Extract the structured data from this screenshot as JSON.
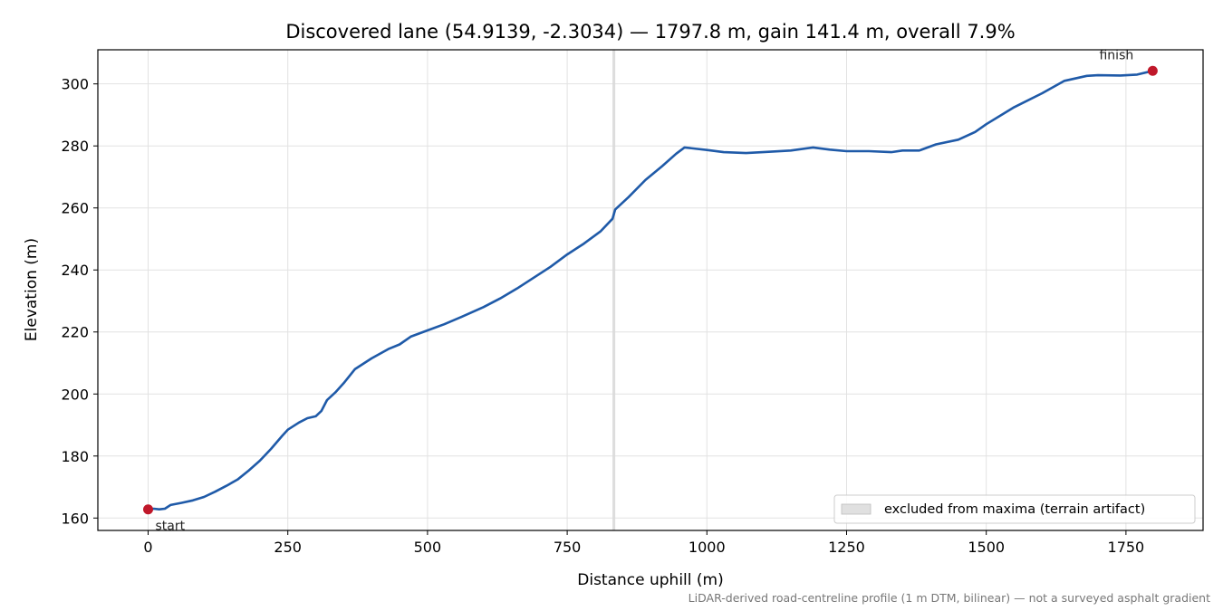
{
  "chart_data": {
    "type": "line",
    "title": "Discovered lane (54.9139, -2.3034) — 1797.8 m, gain 141.4 m, overall 7.9%",
    "xlabel": "Distance uphill (m)",
    "ylabel": "Elevation (m)",
    "xlim": [
      -90,
      1888
    ],
    "ylim": [
      156,
      311
    ],
    "xticks": [
      0,
      250,
      500,
      750,
      1000,
      1250,
      1500,
      1750
    ],
    "yticks": [
      160,
      180,
      200,
      220,
      240,
      260,
      280,
      300
    ],
    "grid": true,
    "legend_position": "lower-right",
    "legend": [
      {
        "label": "excluded from maxima (terrain artifact)",
        "type": "band"
      }
    ],
    "colors": {
      "line": "#1f5aa8",
      "endpoints": "#c0182a",
      "band": "#d9d9d9"
    },
    "excluded_band": {
      "x_start": 831,
      "x_end": 836
    },
    "series": [
      {
        "points": [
          [
            0,
            162.8
          ],
          [
            10,
            163.0
          ],
          [
            20,
            162.8
          ],
          [
            30,
            163.0
          ],
          [
            40,
            164.2
          ],
          [
            60,
            164.9
          ],
          [
            80,
            165.7
          ],
          [
            100,
            166.8
          ],
          [
            120,
            168.5
          ],
          [
            140,
            170.4
          ],
          [
            160,
            172.4
          ],
          [
            180,
            175.3
          ],
          [
            200,
            178.5
          ],
          [
            220,
            182.3
          ],
          [
            240,
            186.5
          ],
          [
            250,
            188.5
          ],
          [
            270,
            190.8
          ],
          [
            285,
            192.2
          ],
          [
            300,
            192.8
          ],
          [
            310,
            194.5
          ],
          [
            320,
            198.0
          ],
          [
            335,
            200.5
          ],
          [
            350,
            203.5
          ],
          [
            370,
            208.0
          ],
          [
            400,
            211.5
          ],
          [
            430,
            214.5
          ],
          [
            450,
            216.0
          ],
          [
            470,
            218.5
          ],
          [
            500,
            220.5
          ],
          [
            530,
            222.5
          ],
          [
            560,
            224.8
          ],
          [
            600,
            228.0
          ],
          [
            630,
            230.8
          ],
          [
            660,
            234.0
          ],
          [
            690,
            237.5
          ],
          [
            720,
            241.0
          ],
          [
            750,
            245.0
          ],
          [
            780,
            248.5
          ],
          [
            810,
            252.5
          ],
          [
            831,
            256.5
          ],
          [
            836,
            259.5
          ],
          [
            860,
            263.5
          ],
          [
            890,
            269.0
          ],
          [
            920,
            273.5
          ],
          [
            945,
            277.5
          ],
          [
            960,
            279.5
          ],
          [
            1000,
            278.7
          ],
          [
            1030,
            278.0
          ],
          [
            1070,
            277.7
          ],
          [
            1100,
            278.0
          ],
          [
            1150,
            278.5
          ],
          [
            1190,
            279.5
          ],
          [
            1220,
            278.8
          ],
          [
            1250,
            278.3
          ],
          [
            1290,
            278.3
          ],
          [
            1330,
            278.0
          ],
          [
            1350,
            278.5
          ],
          [
            1380,
            278.5
          ],
          [
            1410,
            280.5
          ],
          [
            1450,
            282.0
          ],
          [
            1480,
            284.5
          ],
          [
            1500,
            287.0
          ],
          [
            1550,
            292.5
          ],
          [
            1600,
            297.0
          ],
          [
            1640,
            301.0
          ],
          [
            1680,
            302.6
          ],
          [
            1700,
            302.8
          ],
          [
            1740,
            302.7
          ],
          [
            1770,
            303.0
          ],
          [
            1797.8,
            304.2
          ]
        ]
      }
    ],
    "annotations": [
      {
        "text": "start",
        "x": 0,
        "y": 162.8
      },
      {
        "text": "finish",
        "x": 1797.8,
        "y": 304.2
      }
    ]
  },
  "footnote": "LiDAR-derived road-centreline profile (1 m DTM, bilinear) — not a surveyed asphalt gradient"
}
